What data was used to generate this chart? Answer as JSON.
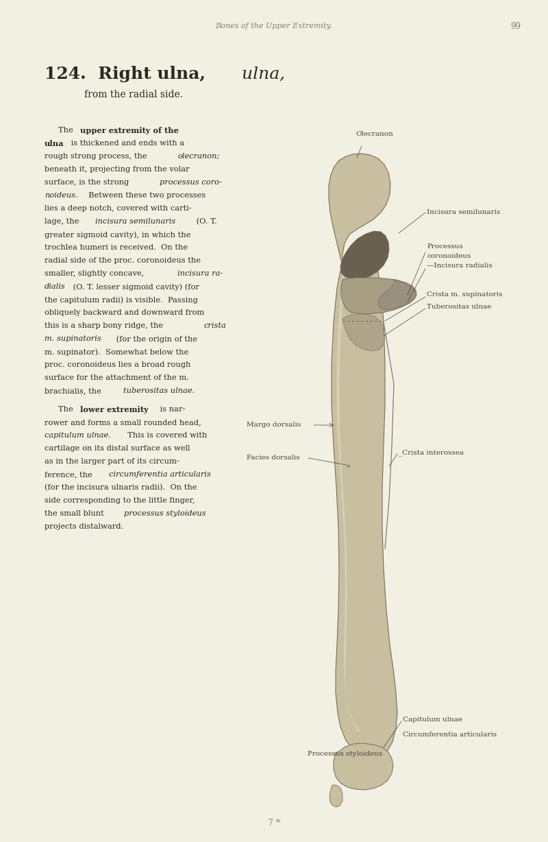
{
  "background_color": "#f2efe3",
  "page_header": "Bones of the Upper Extremity.",
  "page_number": "99",
  "header_color": "#8a8070",
  "title_line": "124.  Right ulna,",
  "title_italic_part": "ulna,",
  "title_sub": "from the radial side.",
  "footer_text": "7 *",
  "text_color": "#2e2820",
  "label_color": "#4a4035",
  "bone_main": "#c8bea0",
  "bone_dark": "#7a6e58",
  "bone_mid": "#a89e84",
  "bone_light": "#ddd5bc",
  "bone_shadow": "#5a5040",
  "notch_color": "#6a6050",
  "label_fs": 7.5,
  "body_fs": 8.2
}
